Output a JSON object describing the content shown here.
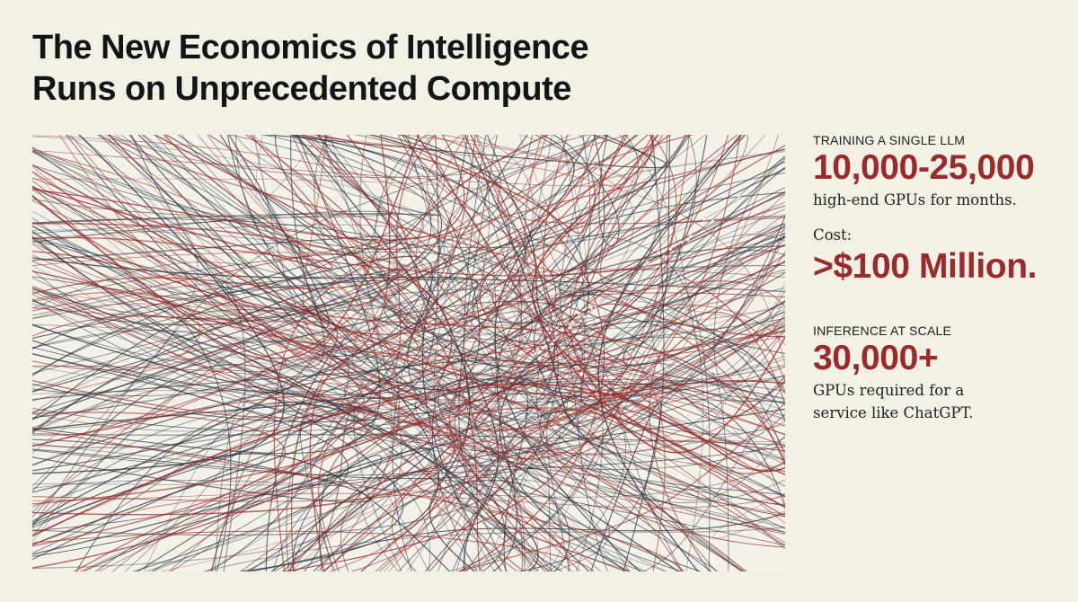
{
  "title": {
    "line1": "The New Economics of Intelligence",
    "line2": "Runs on Unprecedented Compute"
  },
  "artwork": {
    "name": "tangled-lines-illustration",
    "colors": {
      "dark": "#2b2f38",
      "red": "#9b2a2b",
      "background": "#f4f1e8"
    }
  },
  "training": {
    "eyebrow": "TRAINING A SINGLE LLM",
    "figure": "10,000-25,000",
    "detail": "high-end GPUs for months.",
    "cost_label": "Cost:",
    "cost_value": ">$100 Million."
  },
  "inference": {
    "eyebrow": "INFERENCE AT SCALE",
    "figure": "30,000+",
    "detail_line1": "GPUs required for a",
    "detail_line2": "service like ChatGPT."
  },
  "colors": {
    "accent": "#9b2a2b",
    "text": "#141414",
    "page": "#f3f0e6"
  }
}
